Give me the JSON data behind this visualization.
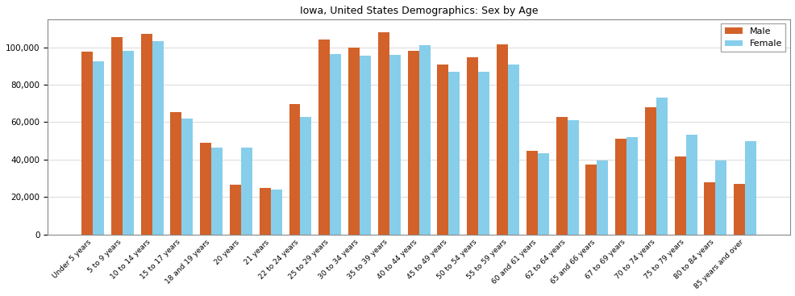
{
  "title": "Iowa, United States Demographics: Sex by Age",
  "categories": [
    "Under 5 years",
    "5 to 9 years",
    "10 to 14 years",
    "15 to 17 years",
    "18 and 19 years",
    "20 years",
    "21 years",
    "22 to 24 years",
    "25 to 29 years",
    "30 to 34 years",
    "35 to 39 years",
    "40 to 44 years",
    "45 to 49 years",
    "50 to 54 years",
    "55 to 59 years",
    "60 and 61 years",
    "62 to 64 years",
    "65 and 66 years",
    "67 to 69 years",
    "70 to 74 years",
    "75 to 79 years",
    "80 to 84 years",
    "85 years and over"
  ],
  "male": [
    97500,
    105500,
    107000,
    65500,
    49000,
    26500,
    25000,
    69500,
    104000,
    100000,
    108000,
    98000,
    91000,
    94500,
    101500,
    44500,
    63000,
    37500,
    51000,
    68000,
    41500,
    28000,
    27000
  ],
  "female": [
    92500,
    98000,
    103500,
    62000,
    46500,
    46500,
    24000,
    63000,
    96500,
    95500,
    96000,
    101000,
    87000,
    87000,
    91000,
    43500,
    61000,
    39500,
    52000,
    73000,
    53500,
    39500,
    50000
  ],
  "male_color": "#D2622A",
  "female_color": "#87CEEB",
  "ylim": [
    0,
    115000
  ],
  "yticks": [
    0,
    20000,
    40000,
    60000,
    80000,
    100000
  ],
  "bar_width": 0.38,
  "figsize": [
    9.87,
    3.67
  ],
  "dpi": 100,
  "legend_labels": [
    "Male",
    "Female"
  ],
  "title_fontsize": 9,
  "tick_fontsize": 6.5,
  "ytick_fontsize": 7.5
}
